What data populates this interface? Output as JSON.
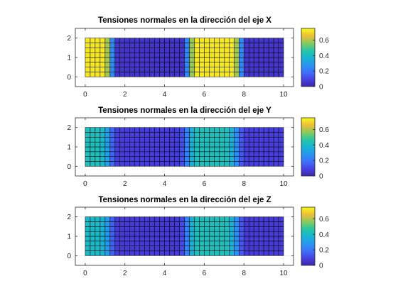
{
  "chart_data": [
    {
      "type": "heatmap",
      "title": "Tensiones normales en la dirección del eje X",
      "xlim": [
        -0.5,
        10.5
      ],
      "ylim": [
        -0.5,
        2.5
      ],
      "xticks": [
        "0",
        "2",
        "4",
        "6",
        "8",
        "10"
      ],
      "yticks": [
        "0",
        "1",
        "2"
      ],
      "grid_x": [
        0,
        10
      ],
      "grid_y": [
        0,
        2
      ],
      "grid_step": 0.25,
      "colorbar": {
        "clim": [
          0,
          0.75
        ],
        "ticks": [
          "0",
          "0.2",
          "0.4",
          "0.6"
        ]
      },
      "profile_x": [
        0,
        1.0,
        1.25,
        1.5,
        5.0,
        5.25,
        5.5,
        7.5,
        7.75,
        8.0,
        10
      ],
      "profile_v": [
        0.72,
        0.72,
        0.45,
        0.05,
        0.05,
        0.42,
        0.72,
        0.72,
        0.45,
        0.05,
        0.05
      ]
    },
    {
      "type": "heatmap",
      "title": "Tensiones normales en la dirección del eje Y",
      "xlim": [
        -0.5,
        10.5
      ],
      "ylim": [
        -0.5,
        2.5
      ],
      "xticks": [
        "0",
        "2",
        "4",
        "6",
        "8",
        "10"
      ],
      "yticks": [
        "0",
        "1",
        "2"
      ],
      "grid_x": [
        0,
        10
      ],
      "grid_y": [
        0,
        2
      ],
      "grid_step": 0.25,
      "colorbar": {
        "clim": [
          0,
          0.75
        ],
        "ticks": [
          "0",
          "0.2",
          "0.4",
          "0.6"
        ]
      },
      "profile_x": [
        0,
        0.75,
        1.0,
        1.25,
        1.5,
        4.75,
        5.0,
        5.25,
        5.5,
        7.25,
        7.5,
        7.75,
        8.0,
        10
      ],
      "profile_v": [
        0.42,
        0.42,
        0.36,
        0.25,
        0.08,
        0.08,
        0.16,
        0.3,
        0.42,
        0.42,
        0.32,
        0.2,
        0.08,
        0.08
      ]
    },
    {
      "type": "heatmap",
      "title": "Tensiones normales en la dirección del eje Z",
      "xlim": [
        -0.5,
        10.5
      ],
      "ylim": [
        -0.5,
        2.5
      ],
      "xticks": [
        "0",
        "2",
        "4",
        "6",
        "8",
        "10"
      ],
      "yticks": [
        "0",
        "1",
        "2"
      ],
      "grid_x": [
        0,
        10
      ],
      "grid_y": [
        0,
        2
      ],
      "grid_step": 0.25,
      "colorbar": {
        "clim": [
          0,
          0.75
        ],
        "ticks": [
          "0",
          "0.2",
          "0.4",
          "0.6"
        ]
      },
      "profile_x": [
        0,
        0.75,
        1.0,
        1.25,
        1.5,
        4.75,
        5.0,
        5.25,
        5.5,
        7.25,
        7.5,
        7.75,
        8.0,
        10
      ],
      "profile_v": [
        0.4,
        0.4,
        0.34,
        0.24,
        0.07,
        0.07,
        0.15,
        0.3,
        0.42,
        0.42,
        0.32,
        0.2,
        0.07,
        0.07
      ]
    }
  ],
  "colormap": "parula"
}
